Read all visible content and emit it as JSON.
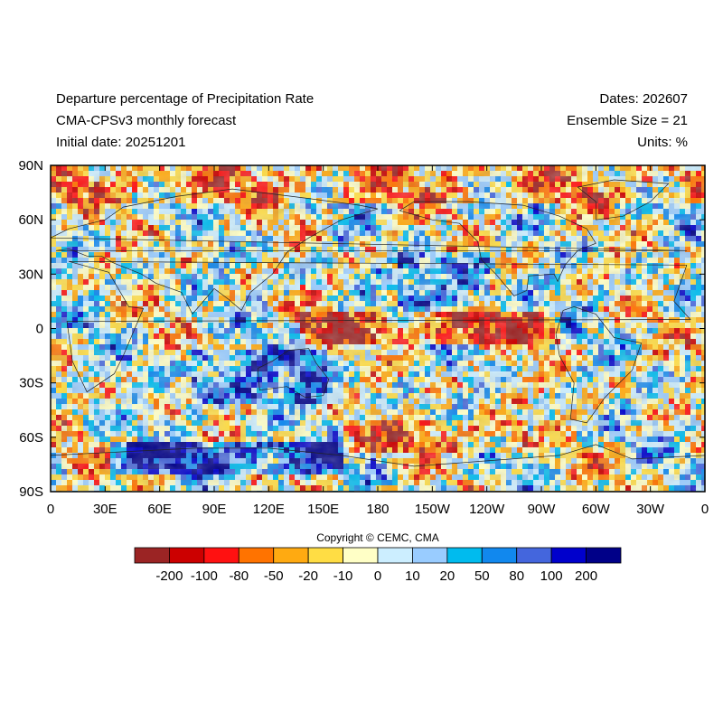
{
  "header": {
    "title": "Departure percentage of Precipitation Rate",
    "model": "CMA-CPSv3 monthly forecast",
    "initial_date": "Initial date: 20251201",
    "dates": "Dates: 202607",
    "ensemble": "Ensemble Size = 21",
    "units": "Units: %"
  },
  "map": {
    "lat_labels": [
      "90N",
      "60N",
      "30N",
      "0",
      "30S",
      "60S",
      "90S"
    ],
    "lon_labels": [
      "0",
      "30E",
      "60E",
      "90E",
      "120E",
      "150E",
      "180",
      "150W",
      "120W",
      "90W",
      "60W",
      "30W",
      "0"
    ],
    "projection": "cylindrical equidistant",
    "field": "precipitation rate departure percentage"
  },
  "copyright": "Copyright © CEMC, CMA",
  "colorbar": {
    "labels": [
      "-200",
      "-100",
      "-80",
      "-50",
      "-20",
      "-10",
      "0",
      "10",
      "20",
      "50",
      "80",
      "100",
      "200"
    ],
    "colors": [
      "#9b2424",
      "#cc0000",
      "#ff1111",
      "#ff7300",
      "#ffaa11",
      "#ffdd44",
      "#ffffc6",
      "#cceeff",
      "#99ccff",
      "#00bbee",
      "#1188ee",
      "#4466dd",
      "#0000cc",
      "#000088"
    ]
  }
}
